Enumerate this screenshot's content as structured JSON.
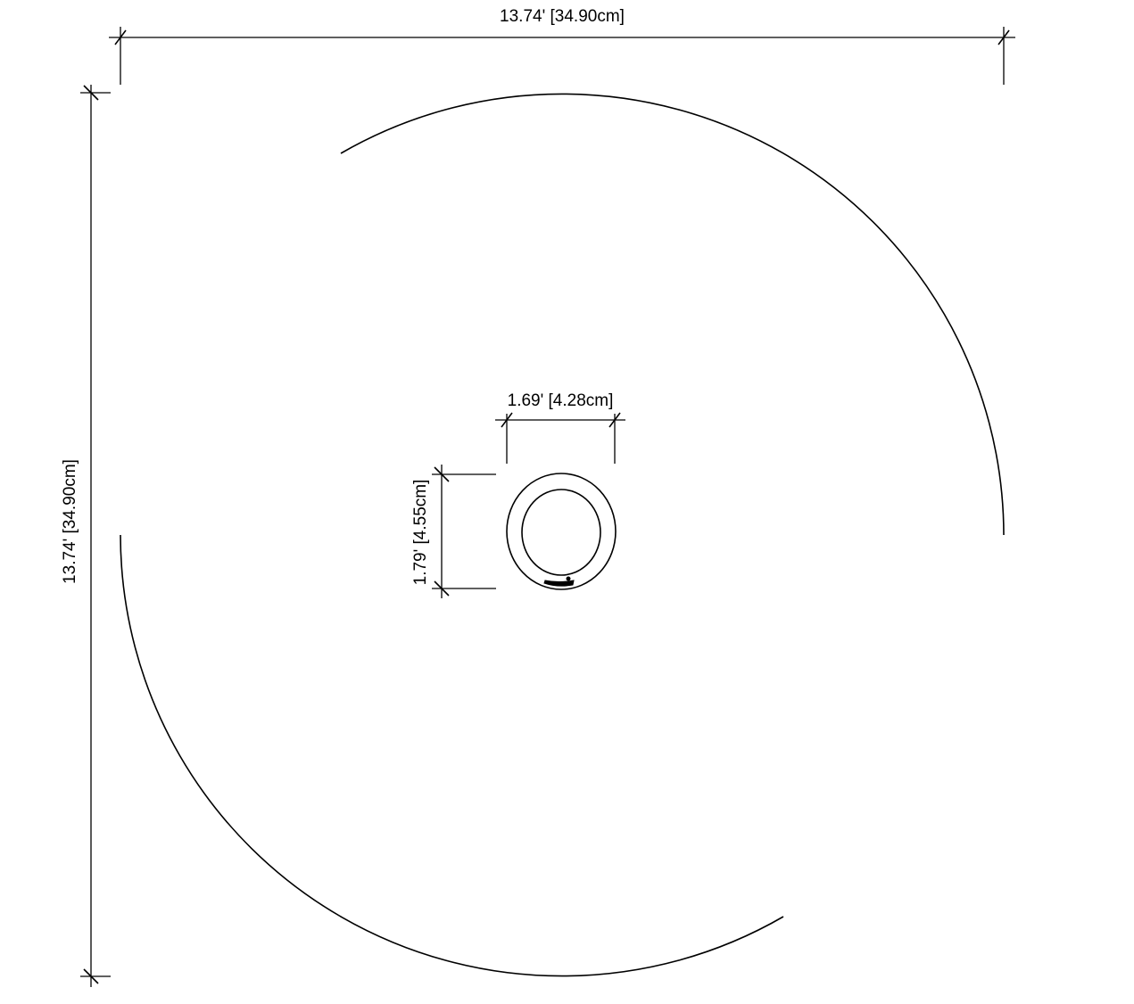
{
  "drawing": {
    "dimensions": {
      "overall_width": "13.74' [34.90cm]",
      "overall_height": "13.74' [34.90cm]",
      "ring_width": "1.69' [4.28cm]",
      "ring_height": "1.79' [4.55cm]"
    }
  }
}
